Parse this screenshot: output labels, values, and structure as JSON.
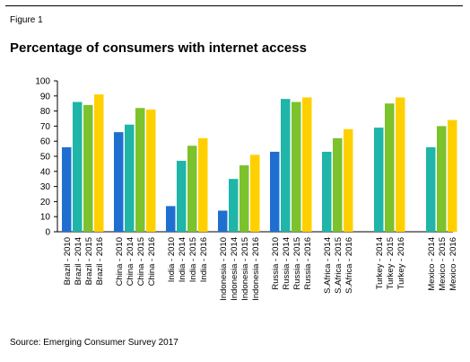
{
  "figure_label": "Figure 1",
  "title": "Percentage of consumers with internet access",
  "source": "Source: Emerging Consumer Survey 2017",
  "chart_data": {
    "type": "bar",
    "ylim": [
      0,
      100
    ],
    "yticks": [
      0,
      10,
      20,
      30,
      40,
      50,
      60,
      70,
      80,
      90,
      100
    ],
    "grid": false,
    "legend": "none",
    "groups": [
      {
        "bars": [
          {
            "label": "Brazil - 2010",
            "value": 56,
            "color": "#1f6fd1"
          },
          {
            "label": "Brazil - 2014",
            "value": 86,
            "color": "#1fb5a8"
          },
          {
            "label": "Brazil - 2015",
            "value": 84,
            "color": "#7cc22c"
          },
          {
            "label": "Brazil - 2016",
            "value": 91,
            "color": "#ffd000"
          }
        ]
      },
      {
        "bars": [
          {
            "label": "China - 2010",
            "value": 66,
            "color": "#1f6fd1"
          },
          {
            "label": "China - 2014",
            "value": 71,
            "color": "#1fb5a8"
          },
          {
            "label": "China - 2015",
            "value": 82,
            "color": "#7cc22c"
          },
          {
            "label": "China - 2016",
            "value": 81,
            "color": "#ffd000"
          }
        ]
      },
      {
        "bars": [
          {
            "label": "India - 2010",
            "value": 17,
            "color": "#1f6fd1"
          },
          {
            "label": "India - 2014",
            "value": 47,
            "color": "#1fb5a8"
          },
          {
            "label": "India - 2015",
            "value": 57,
            "color": "#7cc22c"
          },
          {
            "label": "India - 2016",
            "value": 62,
            "color": "#ffd000"
          }
        ]
      },
      {
        "bars": [
          {
            "label": "Indonesia - 2010",
            "value": 14,
            "color": "#1f6fd1"
          },
          {
            "label": "Indonesia - 2014",
            "value": 35,
            "color": "#1fb5a8"
          },
          {
            "label": "Indonesia - 2015",
            "value": 44,
            "color": "#7cc22c"
          },
          {
            "label": "Indonesia - 2016",
            "value": 51,
            "color": "#ffd000"
          }
        ]
      },
      {
        "bars": [
          {
            "label": "Russia - 2010",
            "value": 53,
            "color": "#1f6fd1"
          },
          {
            "label": "Russia - 2014",
            "value": 88,
            "color": "#1fb5a8"
          },
          {
            "label": "Russia - 2015",
            "value": 86,
            "color": "#7cc22c"
          },
          {
            "label": "Russia - 2016",
            "value": 89,
            "color": "#ffd000"
          }
        ]
      },
      {
        "bars": [
          {
            "label": "S.Africa - 2014",
            "value": 53,
            "color": "#1fb5a8"
          },
          {
            "label": "S.Africa - 2015",
            "value": 62,
            "color": "#7cc22c"
          },
          {
            "label": "S.Africa - 2016",
            "value": 68,
            "color": "#ffd000"
          }
        ]
      },
      {
        "bars": [
          {
            "label": "Turkey - 2014",
            "value": 69,
            "color": "#1fb5a8"
          },
          {
            "label": "Turkey - 2015",
            "value": 85,
            "color": "#7cc22c"
          },
          {
            "label": "Turkey - 2016",
            "value": 89,
            "color": "#ffd000"
          }
        ]
      },
      {
        "bars": [
          {
            "label": "Mexico - 2014",
            "value": 56,
            "color": "#1fb5a8"
          },
          {
            "label": "Mexico - 2015",
            "value": 70,
            "color": "#7cc22c"
          },
          {
            "label": "Mexico - 2016",
            "value": 74,
            "color": "#ffd000"
          }
        ]
      }
    ]
  }
}
